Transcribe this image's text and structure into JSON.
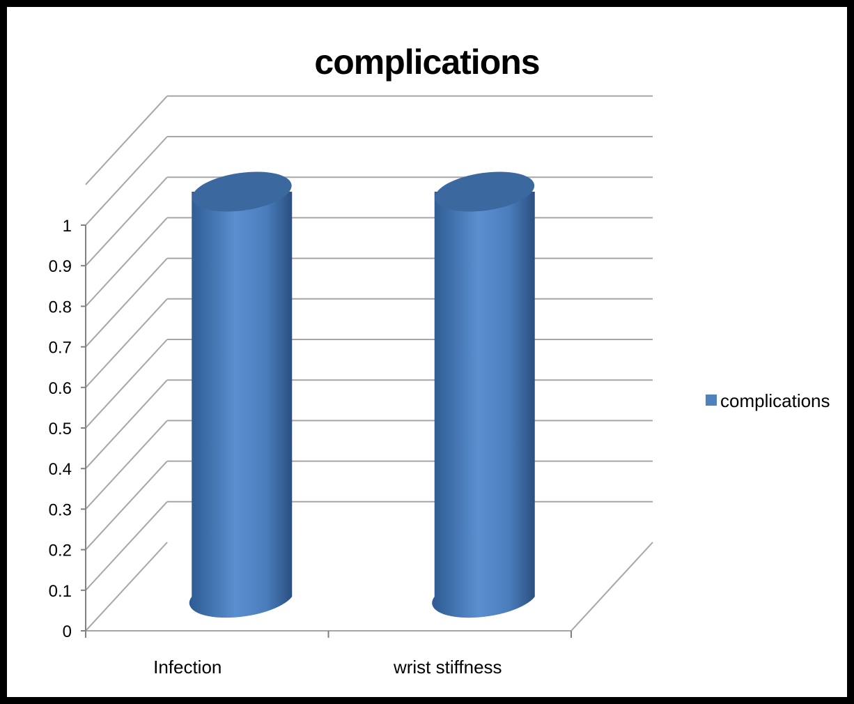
{
  "chart_data": {
    "type": "bar",
    "style": "3d-cylinder",
    "title": "complications",
    "categories": [
      "Infection",
      "wrist stiffness"
    ],
    "series": [
      {
        "name": "complications",
        "values": [
          1,
          1
        ],
        "color": "#4f81bd"
      }
    ],
    "ylim": [
      0,
      1
    ],
    "yticks": [
      "0",
      "0.1",
      "0.2",
      "0.3",
      "0.4",
      "0.5",
      "0.6",
      "0.7",
      "0.8",
      "0.9",
      "1"
    ],
    "xlabel": "",
    "ylabel": "",
    "grid": true,
    "legend": "right"
  }
}
